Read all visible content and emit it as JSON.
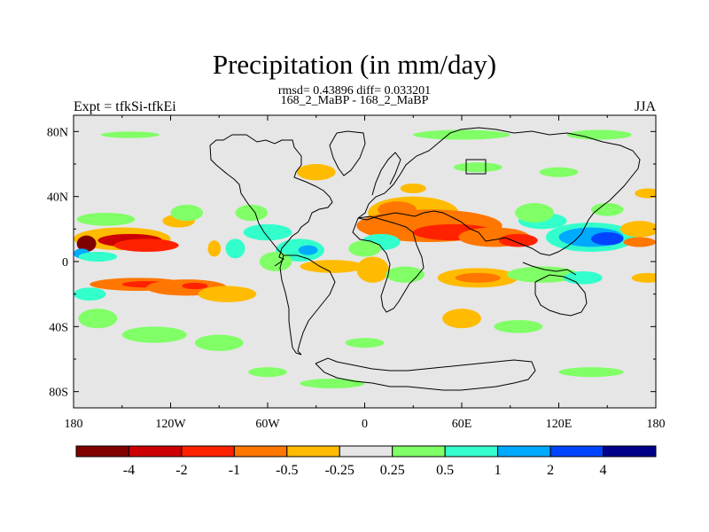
{
  "title": "Precipitation (in mm/day)",
  "stats_line": "rmsd= 0.43896 diff= 0.033201",
  "subtitle": "168_2_MaBP - 168_2_MaBP",
  "left_label": "Expt = tfkSi-tfkEi",
  "right_label": "JJA",
  "chart_data": {
    "type": "heatmap",
    "variable": "Precipitation difference",
    "units": "mm/day",
    "season": "JJA",
    "experiment": "tfkSi-tfkEi",
    "xlim": [
      -180,
      180
    ],
    "ylim": [
      -90,
      90
    ],
    "x_ticks": [
      -180,
      -120,
      -60,
      0,
      60,
      120,
      180
    ],
    "x_tick_labels": [
      "180",
      "120W",
      "60W",
      "0",
      "60E",
      "120E",
      "180"
    ],
    "y_ticks": [
      80,
      40,
      0,
      -40,
      -80
    ],
    "y_tick_labels": [
      "80N",
      "40N",
      "0",
      "40S",
      "80S"
    ],
    "colorbar": {
      "levels": [
        -4,
        -2,
        -1,
        -0.5,
        -0.25,
        0.25,
        0.5,
        1,
        2,
        4
      ],
      "labels": [
        "-4",
        "-2",
        "-1",
        "-0.5",
        "-0.25",
        "0.25",
        "0.5",
        "1",
        "2",
        "4"
      ],
      "colors": [
        "#800000",
        "#cc0000",
        "#ff2200",
        "#ff7700",
        "#ffbb00",
        "#e6e6e6",
        "#80ff66",
        "#33ffcc",
        "#00aaff",
        "#0044ff",
        "#000088"
      ]
    },
    "background_color": "#e6e6e6",
    "anomalies": [
      {
        "lon": -150,
        "lat": 14,
        "rlon": 30,
        "rlat": 7,
        "class": 4
      },
      {
        "lon": -145,
        "lat": 13,
        "rlon": 20,
        "rlat": 4,
        "class": 1
      },
      {
        "lon": -135,
        "lat": 10,
        "rlon": 20,
        "rlat": 4,
        "class": 2
      },
      {
        "lon": -172,
        "lat": 11,
        "rlon": 6,
        "rlat": 5,
        "class": 0
      },
      {
        "lon": -175,
        "lat": 5,
        "rlon": 5,
        "rlat": 3,
        "class": 8
      },
      {
        "lon": -165,
        "lat": 3,
        "rlon": 12,
        "rlat": 3,
        "class": 7
      },
      {
        "lon": -160,
        "lat": 26,
        "rlon": 18,
        "rlat": 4,
        "class": 6
      },
      {
        "lon": -115,
        "lat": 25,
        "rlon": 10,
        "rlat": 4,
        "class": 4
      },
      {
        "lon": -110,
        "lat": 30,
        "rlon": 10,
        "rlat": 5,
        "class": 6
      },
      {
        "lon": -140,
        "lat": -14,
        "rlon": 30,
        "rlat": 4,
        "class": 3
      },
      {
        "lon": -135,
        "lat": -14,
        "rlon": 15,
        "rlat": 2,
        "class": 2
      },
      {
        "lon": -110,
        "lat": -16,
        "rlon": 25,
        "rlat": 5,
        "class": 3
      },
      {
        "lon": -105,
        "lat": -15,
        "rlon": 8,
        "rlat": 2,
        "class": 2
      },
      {
        "lon": -85,
        "lat": -20,
        "rlon": 18,
        "rlat": 5,
        "class": 4
      },
      {
        "lon": -170,
        "lat": -20,
        "rlon": 10,
        "rlat": 4,
        "class": 7
      },
      {
        "lon": -165,
        "lat": -35,
        "rlon": 12,
        "rlat": 6,
        "class": 6
      },
      {
        "lon": -130,
        "lat": -45,
        "rlon": 20,
        "rlat": 5,
        "class": 6
      },
      {
        "lon": -90,
        "lat": -50,
        "rlon": 15,
        "rlat": 5,
        "class": 6
      },
      {
        "lon": -145,
        "lat": 78,
        "rlon": 18,
        "rlat": 2,
        "class": 6
      },
      {
        "lon": -40,
        "lat": 7,
        "rlon": 15,
        "rlat": 7,
        "class": 7
      },
      {
        "lon": -35,
        "lat": 7,
        "rlon": 6,
        "rlat": 3,
        "class": 8
      },
      {
        "lon": -20,
        "lat": -3,
        "rlon": 20,
        "rlat": 4,
        "class": 4
      },
      {
        "lon": -55,
        "lat": 0,
        "rlon": 10,
        "rlat": 6,
        "class": 6
      },
      {
        "lon": -80,
        "lat": 8,
        "rlon": 6,
        "rlat": 6,
        "class": 7
      },
      {
        "lon": -93,
        "lat": 8,
        "rlon": 4,
        "rlat": 5,
        "class": 4
      },
      {
        "lon": -60,
        "lat": 18,
        "rlon": 15,
        "rlat": 5,
        "class": 7
      },
      {
        "lon": -70,
        "lat": 30,
        "rlon": 10,
        "rlat": 5,
        "class": 6
      },
      {
        "lon": -30,
        "lat": 55,
        "rlon": 12,
        "rlat": 5,
        "class": 4
      },
      {
        "lon": 30,
        "lat": 30,
        "rlon": 28,
        "rlat": 10,
        "class": 4
      },
      {
        "lon": 40,
        "lat": 22,
        "rlon": 45,
        "rlat": 10,
        "class": 3
      },
      {
        "lon": 55,
        "lat": 18,
        "rlon": 25,
        "rlat": 5,
        "class": 2
      },
      {
        "lon": 20,
        "lat": 32,
        "rlon": 12,
        "rlat": 5,
        "class": 3
      },
      {
        "lon": 80,
        "lat": 15,
        "rlon": 22,
        "rlat": 6,
        "class": 3
      },
      {
        "lon": 95,
        "lat": 13,
        "rlon": 12,
        "rlat": 4,
        "class": 2
      },
      {
        "lon": 10,
        "lat": 12,
        "rlon": 12,
        "rlat": 5,
        "class": 7
      },
      {
        "lon": 0,
        "lat": 8,
        "rlon": 10,
        "rlat": 5,
        "class": 6
      },
      {
        "lon": 30,
        "lat": 45,
        "rlon": 8,
        "rlat": 3,
        "class": 4
      },
      {
        "lon": 5,
        "lat": -5,
        "rlon": 10,
        "rlat": 8,
        "class": 4
      },
      {
        "lon": 25,
        "lat": -8,
        "rlon": 12,
        "rlat": 5,
        "class": 6
      },
      {
        "lon": 70,
        "lat": -10,
        "rlon": 25,
        "rlat": 6,
        "class": 4
      },
      {
        "lon": 70,
        "lat": -10,
        "rlon": 14,
        "rlat": 3,
        "class": 3
      },
      {
        "lon": 110,
        "lat": -8,
        "rlon": 22,
        "rlat": 5,
        "class": 6
      },
      {
        "lon": 135,
        "lat": -10,
        "rlon": 12,
        "rlat": 4,
        "class": 7
      },
      {
        "lon": 175,
        "lat": -10,
        "rlon": 10,
        "rlat": 3,
        "class": 4
      },
      {
        "lon": 140,
        "lat": 15,
        "rlon": 28,
        "rlat": 9,
        "class": 7
      },
      {
        "lon": 140,
        "lat": 15,
        "rlon": 20,
        "rlat": 6,
        "class": 8
      },
      {
        "lon": 150,
        "lat": 14,
        "rlon": 10,
        "rlat": 4,
        "class": 9
      },
      {
        "lon": 110,
        "lat": 25,
        "rlon": 15,
        "rlat": 5,
        "class": 7
      },
      {
        "lon": 105,
        "lat": 30,
        "rlon": 12,
        "rlat": 6,
        "class": 6
      },
      {
        "lon": 170,
        "lat": 20,
        "rlon": 12,
        "rlat": 5,
        "class": 4
      },
      {
        "lon": 170,
        "lat": 12,
        "rlon": 10,
        "rlat": 3,
        "class": 3
      },
      {
        "lon": 175,
        "lat": 42,
        "rlon": 8,
        "rlat": 3,
        "class": 4
      },
      {
        "lon": 150,
        "lat": 32,
        "rlon": 10,
        "rlat": 4,
        "class": 6
      },
      {
        "lon": 60,
        "lat": -35,
        "rlon": 12,
        "rlat": 6,
        "class": 4
      },
      {
        "lon": 95,
        "lat": -40,
        "rlon": 15,
        "rlat": 4,
        "class": 6
      },
      {
        "lon": 0,
        "lat": -50,
        "rlon": 12,
        "rlat": 3,
        "class": 6
      },
      {
        "lon": 60,
        "lat": 78,
        "rlon": 30,
        "rlat": 3,
        "class": 6
      },
      {
        "lon": 145,
        "lat": 78,
        "rlon": 20,
        "rlat": 3,
        "class": 6
      },
      {
        "lon": 70,
        "lat": 58,
        "rlon": 15,
        "rlat": 3,
        "class": 6
      },
      {
        "lon": 120,
        "lat": 55,
        "rlon": 12,
        "rlat": 3,
        "class": 6
      },
      {
        "lon": -20,
        "lat": -75,
        "rlon": 20,
        "rlat": 3,
        "class": 6
      },
      {
        "lon": -60,
        "lat": -68,
        "rlon": 12,
        "rlat": 3,
        "class": 6
      },
      {
        "lon": 140,
        "lat": -68,
        "rlon": 20,
        "rlat": 3,
        "class": 6
      }
    ]
  }
}
